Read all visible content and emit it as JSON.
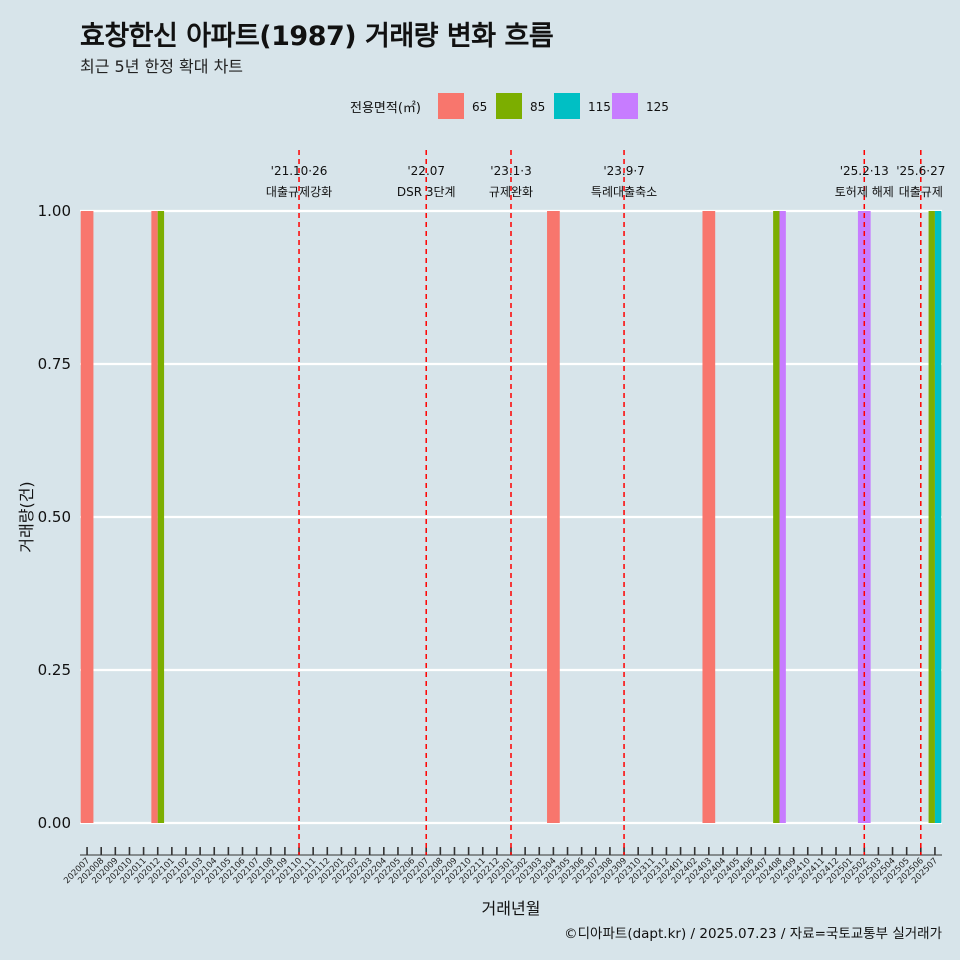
{
  "page": {
    "title": "효창한신 아파트(1987) 거래량 변화 흐름",
    "subtitle": "최근 5년 한정 확대 차트",
    "caption": "©디아파트(dapt.kr) / 2025.07.23 / 자료=국토교통부 실거래가"
  },
  "chart_data": {
    "type": "bar",
    "xlabel": "거래년월",
    "ylabel": "거래량(건)",
    "ylim": [
      0,
      1
    ],
    "yticks": [
      "0.00",
      "0.25",
      "0.50",
      "0.75",
      "1.00"
    ],
    "legend_title": "전용면적(㎡)",
    "legend_position": "top",
    "grid": "horizontal",
    "categories": [
      "202007",
      "202008",
      "202009",
      "202010",
      "202011",
      "202012",
      "202101",
      "202102",
      "202103",
      "202104",
      "202105",
      "202106",
      "202107",
      "202108",
      "202109",
      "202110",
      "202111",
      "202112",
      "202201",
      "202202",
      "202203",
      "202204",
      "202205",
      "202206",
      "202207",
      "202208",
      "202209",
      "202210",
      "202211",
      "202212",
      "202301",
      "202302",
      "202303",
      "202304",
      "202305",
      "202306",
      "202307",
      "202308",
      "202309",
      "202310",
      "202311",
      "202312",
      "202401",
      "202402",
      "202403",
      "202404",
      "202405",
      "202406",
      "202407",
      "202408",
      "202409",
      "202410",
      "202411",
      "202412",
      "202501",
      "202502",
      "202503",
      "202504",
      "202505",
      "202506",
      "202507"
    ],
    "series": [
      {
        "name": "65",
        "color": "#F8766D",
        "values": [
          1,
          0,
          0,
          0,
          0,
          1,
          0,
          0,
          0,
          0,
          0,
          0,
          0,
          0,
          0,
          0,
          0,
          0,
          0,
          0,
          0,
          0,
          0,
          0,
          0,
          0,
          0,
          0,
          0,
          0,
          0,
          0,
          0,
          1,
          0,
          0,
          0,
          0,
          0,
          0,
          0,
          0,
          0,
          0,
          1,
          0,
          0,
          0,
          0,
          0,
          0,
          0,
          0,
          0,
          0,
          0,
          0,
          0,
          0,
          0,
          0
        ]
      },
      {
        "name": "85",
        "color": "#7CAE00",
        "values": [
          0,
          0,
          0,
          0,
          0,
          1,
          0,
          0,
          0,
          0,
          0,
          0,
          0,
          0,
          0,
          0,
          0,
          0,
          0,
          0,
          0,
          0,
          0,
          0,
          0,
          0,
          0,
          0,
          0,
          0,
          0,
          0,
          0,
          0,
          0,
          0,
          0,
          0,
          0,
          0,
          0,
          0,
          0,
          0,
          0,
          0,
          0,
          0,
          0,
          1,
          0,
          0,
          0,
          0,
          0,
          0,
          0,
          0,
          0,
          0,
          1
        ]
      },
      {
        "name": "115",
        "color": "#00BFC4",
        "values": [
          0,
          0,
          0,
          0,
          0,
          0,
          0,
          0,
          0,
          0,
          0,
          0,
          0,
          0,
          0,
          0,
          0,
          0,
          0,
          0,
          0,
          0,
          0,
          0,
          0,
          0,
          0,
          0,
          0,
          0,
          0,
          0,
          0,
          0,
          0,
          0,
          0,
          0,
          0,
          0,
          0,
          0,
          0,
          0,
          0,
          0,
          0,
          0,
          0,
          0,
          0,
          0,
          0,
          0,
          0,
          0,
          0,
          0,
          0,
          0,
          1
        ]
      },
      {
        "name": "125",
        "color": "#C77CFF",
        "values": [
          0,
          0,
          0,
          0,
          0,
          0,
          0,
          0,
          0,
          0,
          0,
          0,
          0,
          0,
          0,
          0,
          0,
          0,
          0,
          0,
          0,
          0,
          0,
          0,
          0,
          0,
          0,
          0,
          0,
          0,
          0,
          0,
          0,
          0,
          0,
          0,
          0,
          0,
          0,
          0,
          0,
          0,
          0,
          0,
          0,
          0,
          0,
          0,
          0,
          1,
          0,
          0,
          0,
          0,
          0,
          1,
          0,
          0,
          0,
          0,
          0
        ]
      }
    ],
    "annotations": [
      {
        "x": "202110",
        "date": "'21.10·26",
        "label": "대출규제강화"
      },
      {
        "x": "202207",
        "date": "'22.07",
        "label": "DSR 3단계"
      },
      {
        "x": "202301",
        "date": "'23.1·3",
        "label": "규제완화"
      },
      {
        "x": "202309",
        "date": "'23.9·7",
        "label": "특례대출축소"
      },
      {
        "x": "202502",
        "date": "'25.2·13",
        "label": "토허제 해제"
      },
      {
        "x": "202506",
        "date": "'25.6·27",
        "label": "대출규제"
      }
    ],
    "annotation_color": "#FF0000"
  }
}
